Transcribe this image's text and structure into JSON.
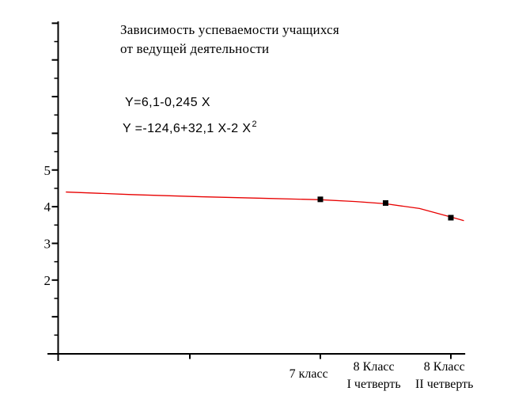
{
  "chart_data": {
    "type": "line",
    "title_lines": [
      "Зависимость успеваемости учащихся",
      "от ведущей деятельности"
    ],
    "equations": {
      "eq1": "Y=6,1-0,245 X",
      "eq2_main": "Y =-124,6+32,1 X-2 X",
      "eq2_sup": "2"
    },
    "y_axis": {
      "range": [
        0,
        9.05
      ],
      "major_step": 1,
      "minor_step": 0.5,
      "labeled_ticks": [
        5,
        4,
        3,
        2
      ]
    },
    "x_axis": {
      "range": [
        0,
        3.11
      ],
      "ticks": [
        1,
        2,
        3
      ],
      "category_labels": [
        {
          "x": 1.91,
          "lines": [
            "7 класс"
          ]
        },
        {
          "x": 2.41,
          "lines": [
            "8 Класс",
            "I четверть"
          ]
        },
        {
          "x": 2.95,
          "lines": [
            "8 Класс",
            "II четверть"
          ]
        }
      ]
    },
    "series": [
      {
        "name": "успеваемость",
        "color": "#e80000",
        "marker_color": "#000000",
        "points": [
          {
            "x": 2,
            "y": 4.2,
            "label": "7 класс"
          },
          {
            "x": 2.5,
            "y": 4.1,
            "label": "8 Класс I четверть"
          },
          {
            "x": 3,
            "y": 3.7,
            "label": "8 Класс II четверть"
          }
        ],
        "curve": [
          [
            0.05,
            4.4
          ],
          [
            0.55,
            4.33
          ],
          [
            1.09,
            4.27
          ],
          [
            1.55,
            4.23
          ],
          [
            2.0,
            4.19
          ],
          [
            2.27,
            4.14
          ],
          [
            2.5,
            4.08
          ],
          [
            2.76,
            3.95
          ],
          [
            3.0,
            3.72
          ],
          [
            3.1,
            3.62
          ]
        ]
      }
    ]
  }
}
